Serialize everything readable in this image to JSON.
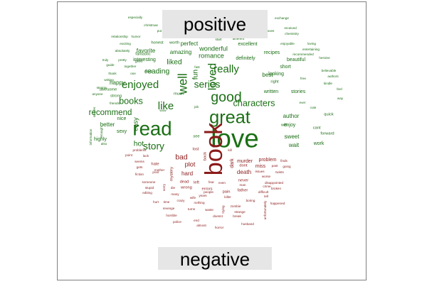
{
  "colors": {
    "positive": "#1a6f14",
    "negative": "#8b1a1a",
    "label_bg": "#e6e6e6",
    "frame": "#7f7f7f"
  },
  "chart_data": {
    "type": "wordcloud",
    "groups": [
      {
        "label": "positive",
        "color": "#1a6f14",
        "words": [
          {
            "text": "love",
            "weight": 32
          },
          {
            "text": "great",
            "weight": 22
          },
          {
            "text": "good",
            "weight": 17
          },
          {
            "text": "read",
            "weight": 24
          },
          {
            "text": "well",
            "weight": 15
          },
          {
            "text": "loved",
            "weight": 14
          },
          {
            "text": "like",
            "weight": 13
          },
          {
            "text": "enjoyed",
            "weight": 13
          },
          {
            "text": "really",
            "weight": 13
          },
          {
            "text": "series",
            "weight": 12
          },
          {
            "text": "characters",
            "weight": 11
          },
          {
            "text": "story",
            "weight": 12
          },
          {
            "text": "books",
            "weight": 11
          },
          {
            "text": "recommend",
            "weight": 10
          },
          {
            "text": "fun",
            "weight": 9
          },
          {
            "text": "reading",
            "weight": 9
          },
          {
            "text": "liked",
            "weight": 9
          },
          {
            "text": "hot",
            "weight": 9
          },
          {
            "text": "easy",
            "weight": 8
          },
          {
            "text": "romance",
            "weight": 8
          },
          {
            "text": "wonderful",
            "weight": 8
          },
          {
            "text": "favorite",
            "weight": 7
          },
          {
            "text": "amazing",
            "weight": 7
          },
          {
            "text": "perfect",
            "weight": 7
          },
          {
            "text": "best",
            "weight": 7
          },
          {
            "text": "sweet",
            "weight": 7
          },
          {
            "text": "wait",
            "weight": 7
          },
          {
            "text": "author",
            "weight": 7
          },
          {
            "text": "better",
            "weight": 7
          },
          {
            "text": "happy",
            "weight": 7
          },
          {
            "text": "interesting",
            "weight": 6
          },
          {
            "text": "excellent",
            "weight": 6
          },
          {
            "text": "definitely",
            "weight": 6
          },
          {
            "text": "written",
            "weight": 6
          },
          {
            "text": "stories",
            "weight": 6
          },
          {
            "text": "enjoy",
            "weight": 6
          },
          {
            "text": "beautiful",
            "weight": 6
          },
          {
            "text": "recipes",
            "weight": 6
          },
          {
            "text": "looking",
            "weight": 6
          },
          {
            "text": "short",
            "weight": 6
          },
          {
            "text": "work",
            "weight": 6
          },
          {
            "text": "nice",
            "weight": 6
          },
          {
            "text": "highly",
            "weight": 6
          },
          {
            "text": "sexy",
            "weight": 6
          },
          {
            "text": "strong",
            "weight": 5
          },
          {
            "text": "awesome",
            "weight": 5
          },
          {
            "text": "next",
            "weight": 5
          },
          {
            "text": "glad",
            "weight": 5
          },
          {
            "text": "fantastic",
            "weight": 5
          },
          {
            "text": "honest",
            "weight": 5
          },
          {
            "text": "worth",
            "weight": 5
          },
          {
            "text": "cant",
            "weight": 5
          },
          {
            "text": "quick",
            "weight": 5
          },
          {
            "text": "forward",
            "weight": 5
          },
          {
            "text": "right",
            "weight": 5
          },
          {
            "text": "will",
            "weight": 5
          },
          {
            "text": "much",
            "weight": 5
          },
          {
            "text": "see",
            "weight": 5
          },
          {
            "text": "positive",
            "weight": 4
          },
          {
            "text": "especially",
            "weight": 4
          },
          {
            "text": "christmas",
            "weight": 4
          },
          {
            "text": "humor",
            "weight": 4
          },
          {
            "text": "relationship",
            "weight": 4
          },
          {
            "text": "exciting",
            "weight": 4
          },
          {
            "text": "absolutely",
            "weight": 4
          },
          {
            "text": "truly",
            "weight": 4
          },
          {
            "text": "pretty",
            "weight": 4
          },
          {
            "text": "guide",
            "weight": 4
          },
          {
            "text": "together",
            "weight": 4
          },
          {
            "text": "thank",
            "weight": 4
          },
          {
            "text": "one",
            "weight": 4
          },
          {
            "text": "writing",
            "weight": 4
          },
          {
            "text": "steamy",
            "weight": 4
          },
          {
            "text": "anyone",
            "weight": 4
          },
          {
            "text": "friends",
            "weight": 4
          },
          {
            "text": "also",
            "weight": 4
          },
          {
            "text": "enough",
            "weight": 4
          },
          {
            "text": "information",
            "weight": 4
          },
          {
            "text": "scenes",
            "weight": 4
          },
          {
            "text": "exchange",
            "weight": 4
          },
          {
            "text": "received",
            "weight": 4
          },
          {
            "text": "loves",
            "weight": 4
          },
          {
            "text": "chemistry",
            "weight": 4
          },
          {
            "text": "recommended",
            "weight": 4
          },
          {
            "text": "loving",
            "weight": 4
          },
          {
            "text": "entertaining",
            "weight": 4
          },
          {
            "text": "heroine",
            "weight": 4
          },
          {
            "text": "believable",
            "weight": 4
          },
          {
            "text": "authors",
            "weight": 4
          },
          {
            "text": "kindle",
            "weight": 4
          },
          {
            "text": "free",
            "weight": 4
          },
          {
            "text": "feel",
            "weight": 4
          },
          {
            "text": "way",
            "weight": 4
          },
          {
            "text": "enjoyable",
            "weight": 4
          },
          {
            "text": "different",
            "weight": 4
          },
          {
            "text": "start",
            "weight": 4
          },
          {
            "text": "fast",
            "weight": 4
          },
          {
            "text": "job",
            "weight": 4
          },
          {
            "text": "wow",
            "weight": 4
          },
          {
            "text": "cute",
            "weight": 4
          },
          {
            "text": "ever",
            "weight": 4
          },
          {
            "text": "put",
            "weight": 4
          }
        ]
      },
      {
        "label": "negative",
        "color": "#8b1a1a",
        "words": [
          {
            "text": "book",
            "weight": 30
          },
          {
            "text": "bad",
            "weight": 9
          },
          {
            "text": "plot",
            "weight": 8
          },
          {
            "text": "hard",
            "weight": 7
          },
          {
            "text": "death",
            "weight": 7
          },
          {
            "text": "murder",
            "weight": 6
          },
          {
            "text": "problem",
            "weight": 6
          },
          {
            "text": "miss",
            "weight": 6
          },
          {
            "text": "dark",
            "weight": 6
          },
          {
            "text": "hate",
            "weight": 5
          },
          {
            "text": "dead",
            "weight": 5
          },
          {
            "text": "left",
            "weight": 5
          },
          {
            "text": "wrong",
            "weight": 5
          },
          {
            "text": "errors",
            "weight": 5
          },
          {
            "text": "pain",
            "weight": 5
          },
          {
            "text": "father",
            "weight": 5
          },
          {
            "text": "dont",
            "weight": 5
          },
          {
            "text": "never",
            "weight": 5
          },
          {
            "text": "mystery",
            "weight": 5
          },
          {
            "text": "lost",
            "weight": 5
          },
          {
            "text": "back",
            "weight": 5
          },
          {
            "text": "problems",
            "weight": 4
          },
          {
            "text": "point",
            "weight": 4
          },
          {
            "text": "seems",
            "weight": 4
          },
          {
            "text": "gets",
            "weight": 4
          },
          {
            "text": "fiction",
            "weight": 4
          },
          {
            "text": "poor",
            "weight": 4
          },
          {
            "text": "mother",
            "weight": 4
          },
          {
            "text": "lack",
            "weight": 4
          },
          {
            "text": "someone",
            "weight": 4
          },
          {
            "text": "stupid",
            "weight": 4
          },
          {
            "text": "editing",
            "weight": 4
          },
          {
            "text": "sorry",
            "weight": 4
          },
          {
            "text": "die",
            "weight": 4
          },
          {
            "text": "many",
            "weight": 4
          },
          {
            "text": "crazy",
            "weight": 4
          },
          {
            "text": "hurt",
            "weight": 4
          },
          {
            "text": "time",
            "weight": 4
          },
          {
            "text": "revenge",
            "weight": 4
          },
          {
            "text": "turns",
            "weight": 4
          },
          {
            "text": "waste",
            "weight": 4
          },
          {
            "text": "horrible",
            "weight": 4
          },
          {
            "text": "police",
            "weight": 4
          },
          {
            "text": "almost",
            "weight": 4
          },
          {
            "text": "end",
            "weight": 4
          },
          {
            "text": "nothing",
            "weight": 4
          },
          {
            "text": "years",
            "weight": 4
          },
          {
            "text": "people",
            "weight": 4
          },
          {
            "text": "even",
            "weight": 4
          },
          {
            "text": "fear",
            "weight": 4
          },
          {
            "text": "man",
            "weight": 4
          },
          {
            "text": "killer",
            "weight": 4
          },
          {
            "text": "boring",
            "weight": 4
          },
          {
            "text": "zombie",
            "weight": 4
          },
          {
            "text": "strange",
            "weight": 4
          },
          {
            "text": "break",
            "weight": 4
          },
          {
            "text": "husband",
            "weight": 4
          },
          {
            "text": "difficult",
            "weight": 4
          },
          {
            "text": "disappointed",
            "weight": 4
          },
          {
            "text": "crime",
            "weight": 4
          },
          {
            "text": "broken",
            "weight": 4
          },
          {
            "text": "issues",
            "weight": 4
          },
          {
            "text": "twists",
            "weight": 4
          },
          {
            "text": "past",
            "weight": 4
          },
          {
            "text": "going",
            "weight": 4
          },
          {
            "text": "finds",
            "weight": 4
          },
          {
            "text": "kill",
            "weight": 4
          },
          {
            "text": "worse",
            "weight": 4
          },
          {
            "text": "happened",
            "weight": 4
          },
          {
            "text": "unfortunately",
            "weight": 4
          },
          {
            "text": "trying",
            "weight": 4
          },
          {
            "text": "doesnt",
            "weight": 4
          },
          {
            "text": "wife",
            "weight": 4
          },
          {
            "text": "horror",
            "weight": 4
          },
          {
            "text": "tell",
            "weight": 4
          }
        ]
      }
    ]
  }
}
